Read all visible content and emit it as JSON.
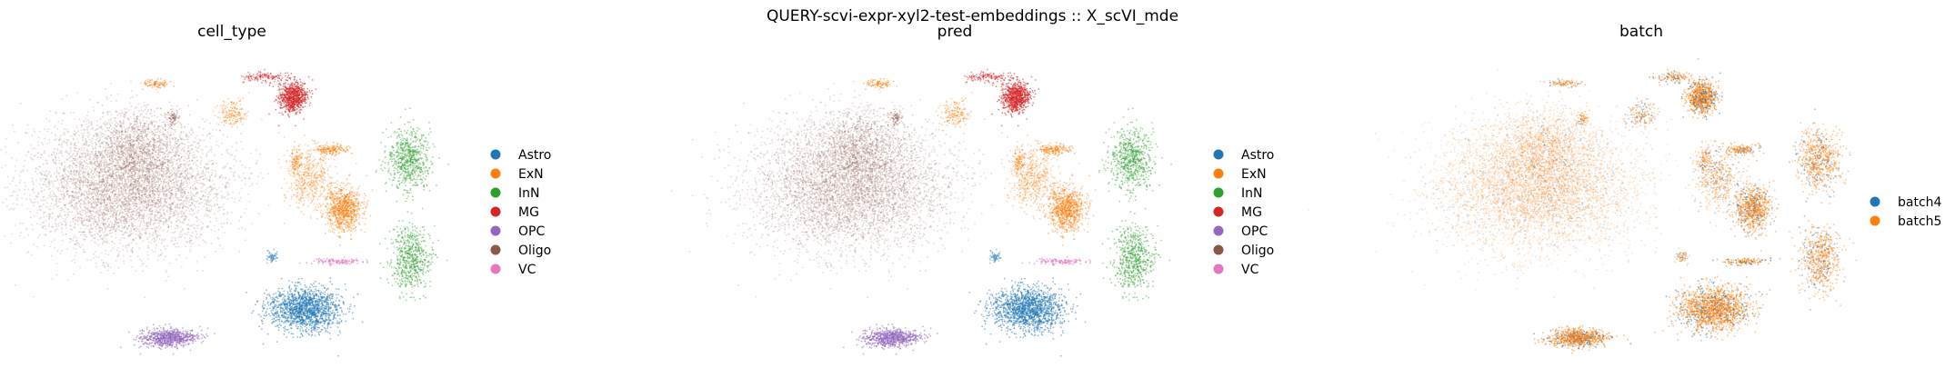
{
  "figure_title": "QUERY-scvi-expr-xyl2-test-embeddings :: X_scVI_mde",
  "colors": {
    "Astro": "#1f77b4",
    "ExN": "#ff7f0e",
    "InN": "#2ca02c",
    "MG": "#d62728",
    "OPC": "#9467bd",
    "Oligo": "#8c564b",
    "VC": "#e377c2",
    "batch4": "#1f77b4",
    "batch5": "#ff7f0e"
  },
  "chart_data": [
    {
      "type": "scatter",
      "title": "cell_type",
      "legend": [
        "Astro",
        "ExN",
        "InN",
        "MG",
        "OPC",
        "Oligo",
        "VC"
      ],
      "legend_placement": "right",
      "axes_visible": false,
      "grid": false
    },
    {
      "type": "scatter",
      "title": "pred",
      "legend": [
        "Astro",
        "ExN",
        "InN",
        "MG",
        "OPC",
        "Oligo",
        "VC"
      ],
      "legend_placement": "right",
      "axes_visible": false,
      "grid": false
    },
    {
      "type": "scatter",
      "title": "batch",
      "legend": [
        "batch4",
        "batch5"
      ],
      "legend_placement": "right",
      "axes_visible": false,
      "grid": false
    }
  ]
}
